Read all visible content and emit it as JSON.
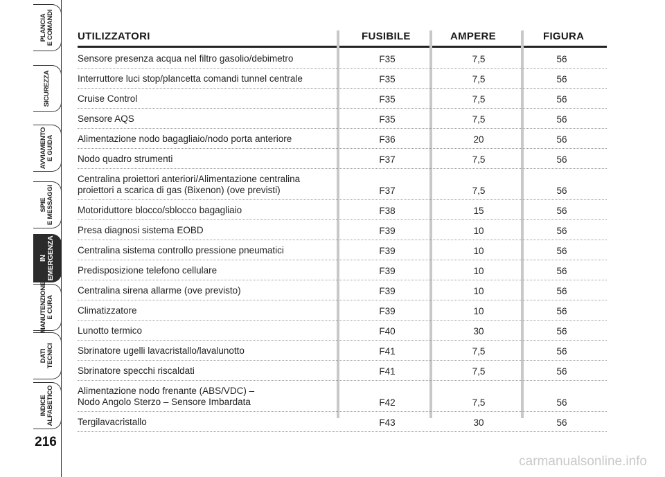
{
  "sidebar": {
    "tabs": [
      {
        "label": "PLANCIA\nE COMANDI",
        "active": false
      },
      {
        "label": "SICUREZZA",
        "active": false
      },
      {
        "label": "AVVIAMENTO\nE GUIDA",
        "active": false
      },
      {
        "label": "SPIE\nE MESSAGGI",
        "active": false
      },
      {
        "label": "IN\nEMERGENZA",
        "active": true
      },
      {
        "label": "MANUTENZIONE\nE CURA",
        "active": false
      },
      {
        "label": "DATI\nTECNICI",
        "active": false
      },
      {
        "label": "INDICE\nALFABETICO",
        "active": false
      }
    ],
    "page_number": "216"
  },
  "table": {
    "headers": {
      "users": "UTILIZZATORI",
      "fuse": "FUSIBILE",
      "ampere": "AMPERE",
      "figure": "FIGURA"
    },
    "rows": [
      {
        "name": "Sensore presenza acqua nel filtro gasolio/debimetro",
        "fuse": "F35",
        "ampere": "7,5",
        "figure": "56"
      },
      {
        "name": "Interruttore luci stop/plancetta comandi tunnel centrale",
        "fuse": "F35",
        "ampere": "7,5",
        "figure": "56"
      },
      {
        "name": "Cruise Control",
        "fuse": "F35",
        "ampere": "7,5",
        "figure": "56"
      },
      {
        "name": "Sensore AQS",
        "fuse": "F35",
        "ampere": "7,5",
        "figure": "56"
      },
      {
        "name": "Alimentazione nodo bagagliaio/nodo porta anteriore",
        "fuse": "F36",
        "ampere": "20",
        "figure": "56"
      },
      {
        "name": "Nodo quadro strumenti",
        "fuse": "F37",
        "ampere": "7,5",
        "figure": "56"
      },
      {
        "name": "Centralina proiettori anteriori/Alimentazione centralina\nproiettori a scarica di gas (Bixenon) (ove previsti)",
        "fuse": "F37",
        "ampere": "7,5",
        "figure": "56"
      },
      {
        "name": "Motoriduttore blocco/sblocco bagagliaio",
        "fuse": "F38",
        "ampere": "15",
        "figure": "56"
      },
      {
        "name": "Presa diagnosi sistema EOBD",
        "fuse": "F39",
        "ampere": "10",
        "figure": "56"
      },
      {
        "name": "Centralina sistema controllo pressione pneumatici",
        "fuse": "F39",
        "ampere": "10",
        "figure": "56"
      },
      {
        "name": "Predisposizione telefono cellulare",
        "fuse": "F39",
        "ampere": "10",
        "figure": "56"
      },
      {
        "name": "Centralina sirena allarme (ove previsto)",
        "fuse": "F39",
        "ampere": "10",
        "figure": "56"
      },
      {
        "name": "Climatizzatore",
        "fuse": "F39",
        "ampere": "10",
        "figure": "56"
      },
      {
        "name": "Lunotto termico",
        "fuse": "F40",
        "ampere": "30",
        "figure": "56"
      },
      {
        "name": "Sbrinatore ugelli lavacristallo/lavalunotto",
        "fuse": "F41",
        "ampere": "7,5",
        "figure": "56"
      },
      {
        "name": "Sbrinatore specchi riscaldati",
        "fuse": "F41",
        "ampere": "7,5",
        "figure": "56"
      },
      {
        "name": "Alimentazione nodo frenante (ABS/VDC) –\nNodo Angolo Sterzo – Sensore Imbardata",
        "fuse": "F42",
        "ampere": "7,5",
        "figure": "56"
      },
      {
        "name": "Tergilavacristallo",
        "fuse": "F43",
        "ampere": "30",
        "figure": "56"
      }
    ]
  },
  "watermark": "carmanualsonline.info"
}
